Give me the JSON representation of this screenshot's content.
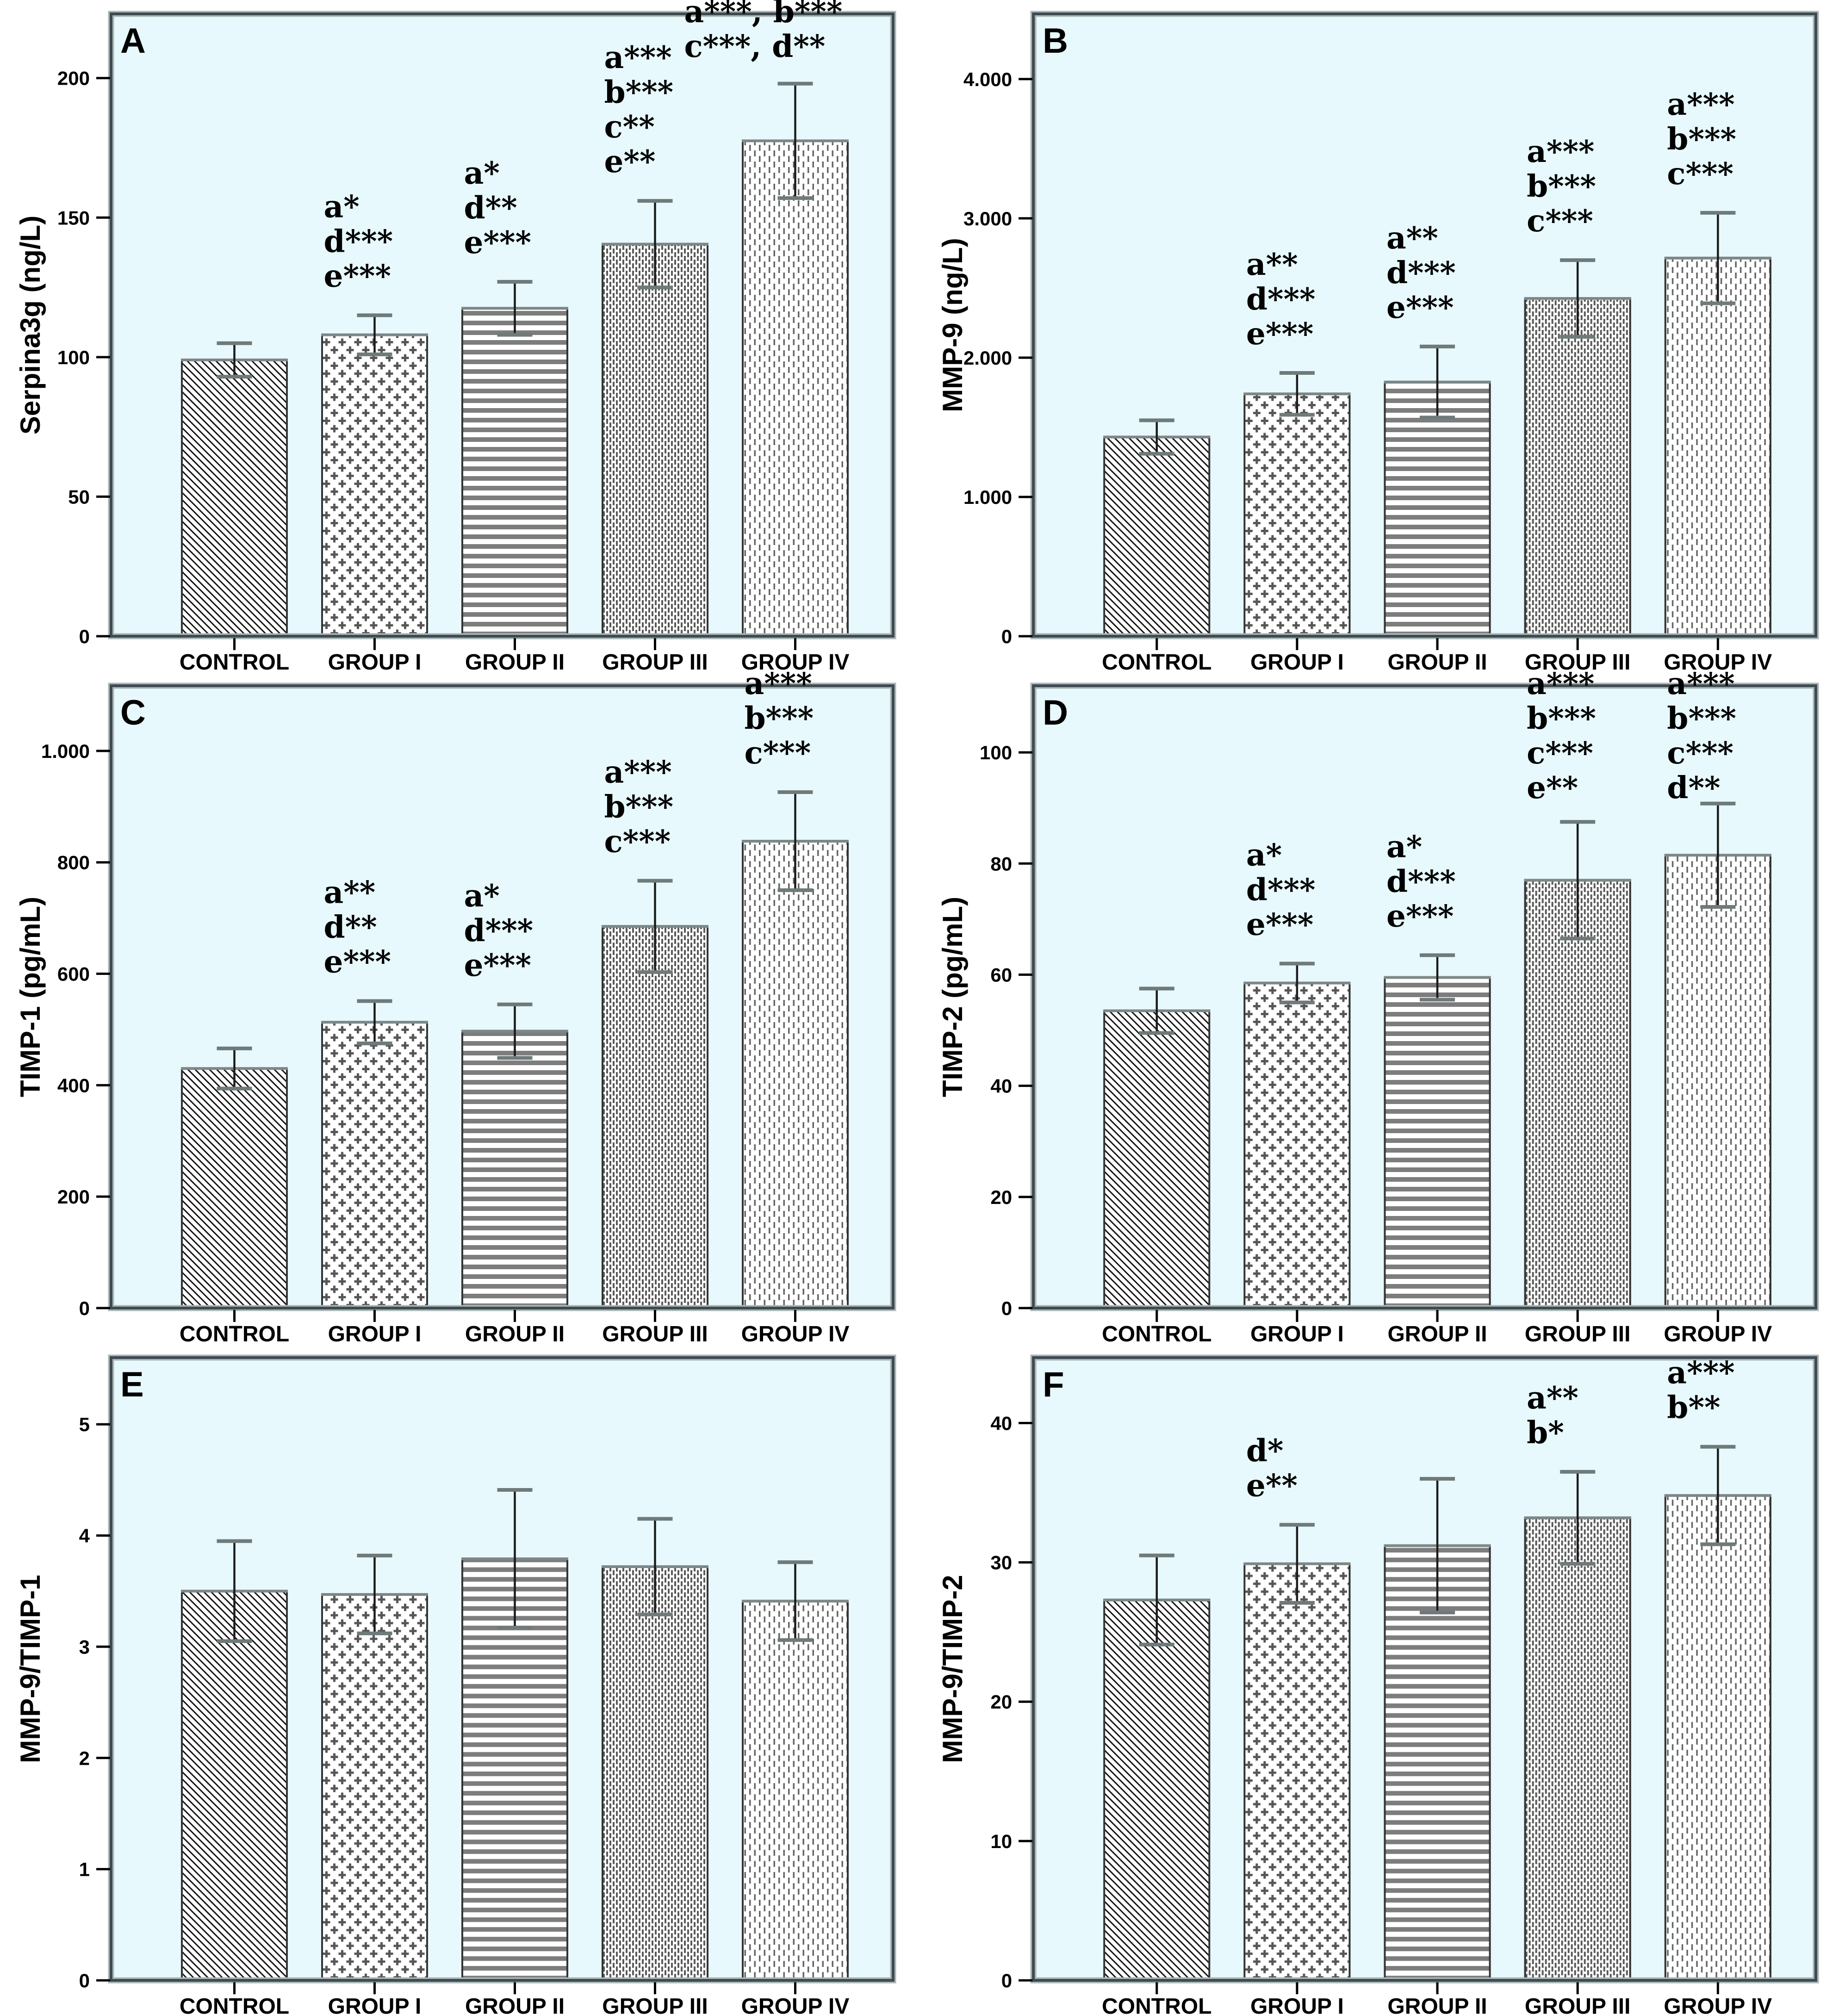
{
  "figure": {
    "description": "Six-panel bar chart figure comparing biomarker levels across experimental groups",
    "panel_letters": [
      "A",
      "B",
      "C",
      "D",
      "E",
      "F"
    ]
  },
  "groups": [
    "CONTROL",
    "GROUP I",
    "GROUP II",
    "GROUP III",
    "GROUP IV"
  ],
  "styles": {
    "plot_bg": "#e7f9fc",
    "frame_dark": "#3f4b51",
    "frame_light": "#a9b6b6",
    "bar_edge": "#343434",
    "bar_top_edge": "#7d8787",
    "bar_fill": "#ffffff",
    "pattern_color": "#575757",
    "stripe_color": "#7d7d7d",
    "diag_color": "#141414",
    "error_stem": "#1c1c1c",
    "error_cap": "#6f7a7a",
    "text_color": "#000000"
  },
  "bar_patterns": [
    "diagonal-hatch",
    "plus-cross",
    "horizontal-stripes",
    "dense-vertical-dashes",
    "sparse-vertical-dashes"
  ],
  "chart_data": [
    {
      "panel": "A",
      "type": "bar",
      "ylabel": "Serpina3g (ng/L)",
      "xlabel": "",
      "categories": [
        "CONTROL",
        "GROUP I",
        "GROUP II",
        "GROUP III",
        "GROUP IV"
      ],
      "values": [
        99,
        108,
        117.5,
        140.5,
        177.5
      ],
      "errors": [
        6,
        7,
        9.5,
        15.5,
        20.5
      ],
      "yticks": [
        0,
        50,
        100,
        150,
        200
      ],
      "ytick_labels": [
        "0",
        "50",
        "100",
        "150",
        "200"
      ],
      "ylim": [
        0,
        223
      ],
      "grid": false,
      "legend": "none",
      "annotations": [
        [],
        [
          "a*",
          "d***",
          "e***"
        ],
        [
          "a*",
          "d**",
          "e***"
        ],
        [
          "a***",
          "b***",
          "c**",
          "e**"
        ],
        [
          "a***, b***",
          "c***, d**"
        ]
      ]
    },
    {
      "panel": "B",
      "type": "bar",
      "ylabel": "MMP-9 (ng/L)",
      "xlabel": "",
      "categories": [
        "CONTROL",
        "GROUP I",
        "GROUP II",
        "GROUP III",
        "GROUP IV"
      ],
      "values": [
        1430,
        1740,
        1825,
        2425,
        2715
      ],
      "errors": [
        120,
        150,
        255,
        275,
        325
      ],
      "yticks": [
        0,
        1000,
        2000,
        3000,
        4000
      ],
      "ytick_labels": [
        "0",
        "1.000",
        "2.000",
        "3.000",
        "4.000"
      ],
      "ylim": [
        0,
        4468
      ],
      "grid": false,
      "legend": "none",
      "annotations": [
        [],
        [
          "a**",
          "d***",
          "e***"
        ],
        [
          "a**",
          "d***",
          "e***"
        ],
        [
          "a***",
          "b***",
          "c***"
        ],
        [
          "a***",
          "b***",
          "c***"
        ]
      ]
    },
    {
      "panel": "C",
      "type": "bar",
      "ylabel": "TIMP-1 (pg/mL)",
      "xlabel": "",
      "categories": [
        "CONTROL",
        "GROUP I",
        "GROUP II",
        "GROUP III",
        "GROUP IV"
      ],
      "values": [
        430,
        513,
        497,
        685,
        838
      ],
      "errors": [
        36,
        38,
        48,
        82,
        88
      ],
      "yticks": [
        0,
        200,
        400,
        600,
        800,
        1000
      ],
      "ytick_labels": [
        "0",
        "200",
        "400",
        "600",
        "800",
        "1.000"
      ],
      "ylim": [
        0,
        1117
      ],
      "grid": false,
      "legend": "none",
      "annotations": [
        [],
        [
          "a**",
          "d**",
          "e***"
        ],
        [
          "a*",
          "d***",
          "e***"
        ],
        [
          "a***",
          "b***",
          "c***"
        ],
        [
          "a***",
          "b***",
          "c***"
        ]
      ]
    },
    {
      "panel": "D",
      "type": "bar",
      "ylabel": "TIMP-2 (pg/mL)",
      "xlabel": "",
      "categories": [
        "CONTROL",
        "GROUP I",
        "GROUP II",
        "GROUP III",
        "GROUP IV"
      ],
      "values": [
        53.5,
        58.5,
        59.5,
        77,
        81.5
      ],
      "errors": [
        4,
        3.5,
        4,
        10.5,
        9.3
      ],
      "yticks": [
        0,
        20,
        40,
        60,
        80,
        100
      ],
      "ytick_labels": [
        "0",
        "20",
        "40",
        "60",
        "80",
        "100"
      ],
      "ylim": [
        0,
        112
      ],
      "grid": false,
      "legend": "none",
      "annotations": [
        [],
        [
          "a*",
          "d***",
          "e***"
        ],
        [
          "a*",
          "d***",
          "e***"
        ],
        [
          "a***",
          "b***",
          "c***",
          "e**"
        ],
        [
          "a***",
          "b***",
          "c***",
          "d**"
        ]
      ]
    },
    {
      "panel": "E",
      "type": "bar",
      "ylabel": "MMP-9/TIMP-1",
      "xlabel": "",
      "categories": [
        "CONTROL",
        "GROUP I",
        "GROUP II",
        "GROUP III",
        "GROUP IV"
      ],
      "values": [
        3.5,
        3.47,
        3.79,
        3.72,
        3.41
      ],
      "errors": [
        0.45,
        0.35,
        0.62,
        0.43,
        0.35
      ],
      "yticks": [
        0,
        1,
        2,
        3,
        4,
        5
      ],
      "ytick_labels": [
        "0",
        "1",
        "2",
        "3",
        "4",
        "5"
      ],
      "ylim": [
        0,
        5.6
      ],
      "grid": false,
      "legend": "none",
      "annotations": [
        [],
        [],
        [],
        [],
        []
      ]
    },
    {
      "panel": "F",
      "type": "bar",
      "ylabel": "MMP-9/TIMP-2",
      "xlabel": "",
      "categories": [
        "CONTROL",
        "GROUP I",
        "GROUP II",
        "GROUP III",
        "GROUP IV"
      ],
      "values": [
        27.3,
        29.9,
        31.2,
        33.2,
        34.8
      ],
      "errors": [
        3.2,
        2.8,
        4.8,
        3.3,
        3.5
      ],
      "yticks": [
        0,
        10,
        20,
        30,
        40
      ],
      "ytick_labels": [
        "0",
        "10",
        "20",
        "30",
        "40"
      ],
      "ylim": [
        0,
        44.7
      ],
      "grid": false,
      "legend": "none",
      "annotations": [
        [],
        [
          "d*",
          "e**"
        ],
        [],
        [
          "a**",
          "b*"
        ],
        [
          "a***",
          "b**"
        ]
      ]
    }
  ]
}
